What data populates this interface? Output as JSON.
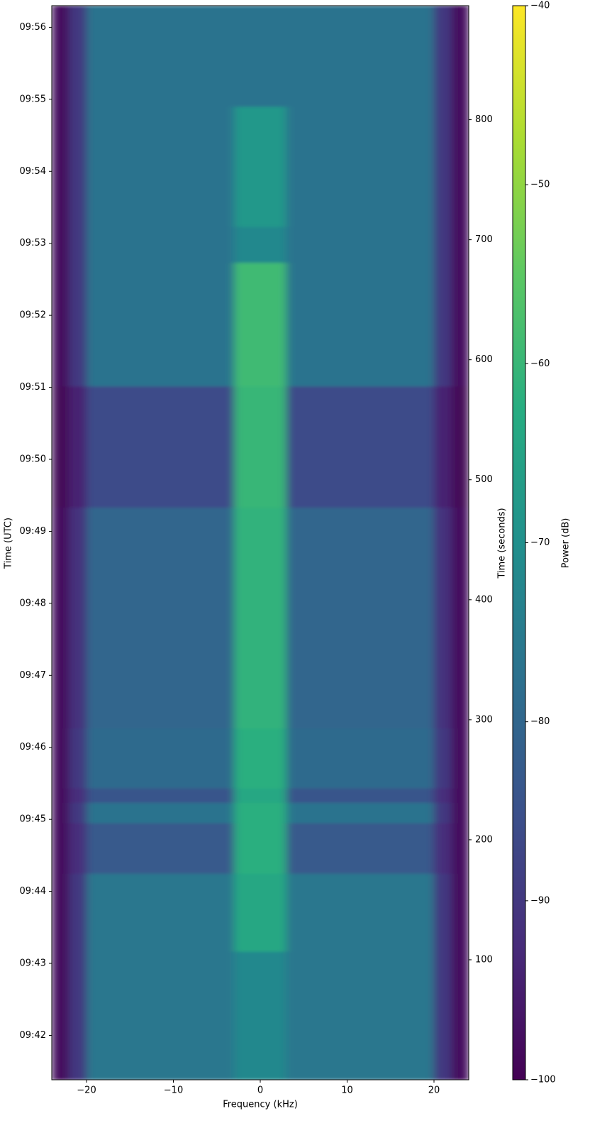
{
  "chart_data": {
    "type": "heatmap",
    "xlabel": "Frequency (kHz)",
    "ylabel": "Time (UTC)",
    "y2label": "Time (seconds)",
    "colorbar_label": "Power (dB)",
    "x_edges": [
      -24,
      -22,
      -20,
      -3,
      3,
      20,
      22,
      24
    ],
    "y_edges": [
      0,
      107,
      172,
      214,
      231,
      243,
      293,
      477,
      578,
      681,
      711,
      811,
      895
    ],
    "z": [
      [
        -98,
        -90,
        -76,
        -72,
        -76,
        -90,
        -98
      ],
      [
        -98,
        -90,
        -76,
        -64,
        -76,
        -90,
        -98
      ],
      [
        -98,
        -92,
        -83,
        -62,
        -83,
        -92,
        -98
      ],
      [
        -98,
        -90,
        -77,
        -62,
        -77,
        -90,
        -98
      ],
      [
        -98,
        -92,
        -84,
        -64,
        -84,
        -92,
        -98
      ],
      [
        -98,
        -90,
        -79,
        -62,
        -79,
        -90,
        -98
      ],
      [
        -98,
        -91,
        -80,
        -61,
        -80,
        -91,
        -98
      ],
      [
        -99,
        -94,
        -86,
        -60,
        -86,
        -94,
        -99
      ],
      [
        -98,
        -90,
        -77,
        -59,
        -77,
        -90,
        -98
      ],
      [
        -98,
        -90,
        -77,
        -72,
        -77,
        -90,
        -98
      ],
      [
        -98,
        -90,
        -77,
        -68,
        -77,
        -90,
        -98
      ],
      [
        -98,
        -90,
        -77,
        -77,
        -77,
        -90,
        -98
      ]
    ],
    "xlim": [
      -24,
      24
    ],
    "xticks": [
      {
        "value": -20,
        "label": "−20"
      },
      {
        "value": -10,
        "label": "−10"
      },
      0,
      10,
      20
    ],
    "ylim": [
      0,
      895
    ],
    "yticks": [
      {
        "value": 37,
        "label": "09:42"
      },
      {
        "value": 97,
        "label": "09:43"
      },
      {
        "value": 157,
        "label": "09:44"
      },
      {
        "value": 217,
        "label": "09:45"
      },
      {
        "value": 277,
        "label": "09:46"
      },
      {
        "value": 337,
        "label": "09:47"
      },
      {
        "value": 397,
        "label": "09:48"
      },
      {
        "value": 457,
        "label": "09:49"
      },
      {
        "value": 517,
        "label": "09:50"
      },
      {
        "value": 577,
        "label": "09:51"
      },
      {
        "value": 637,
        "label": "09:52"
      },
      {
        "value": 697,
        "label": "09:53"
      },
      {
        "value": 757,
        "label": "09:54"
      },
      {
        "value": 817,
        "label": "09:55"
      },
      {
        "value": 877,
        "label": "09:56"
      }
    ],
    "y2lim": [
      0,
      895
    ],
    "y2ticks": [
      100,
      200,
      300,
      400,
      500,
      600,
      700,
      800
    ],
    "clim": [
      -100,
      -40
    ],
    "cticks": [
      {
        "value": -40,
        "label": "−40"
      },
      {
        "value": -50,
        "label": "−50"
      },
      {
        "value": -60,
        "label": "−60"
      },
      {
        "value": -70,
        "label": "−70"
      },
      {
        "value": -80,
        "label": "−80"
      },
      {
        "value": -90,
        "label": "−90"
      },
      {
        "value": -100,
        "label": "−100"
      }
    ],
    "colorscale": [
      "#440154",
      "#472c7a",
      "#3b518b",
      "#2c718e",
      "#21908d",
      "#27ad81",
      "#5cc863",
      "#aadc32",
      "#fde725"
    ]
  }
}
